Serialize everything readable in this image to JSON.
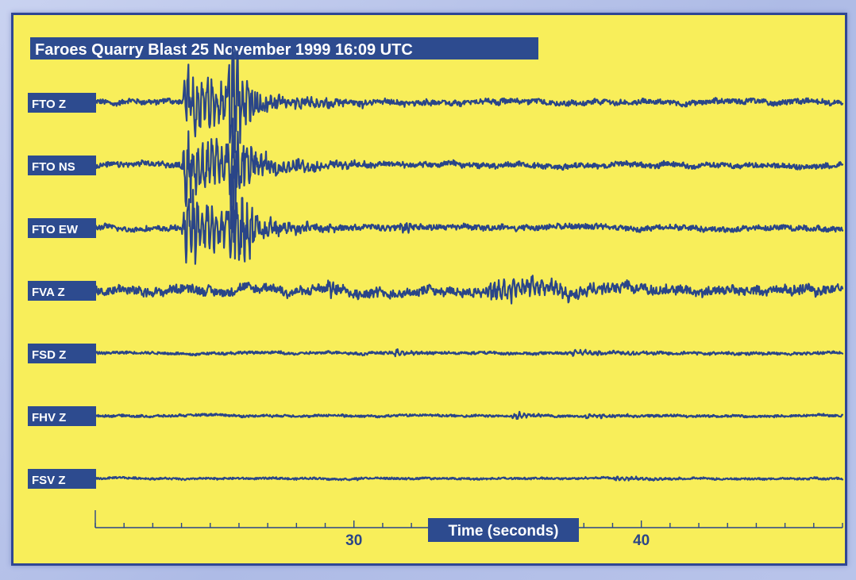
{
  "chart_data": {
    "type": "line",
    "title": "Faroes Quarry Blast  25 November 1999  16:09 UTC",
    "xlabel": "Time (seconds)",
    "ylabel": "",
    "xlim": [
      21,
      47
    ],
    "x_ticks": [
      30,
      40
    ],
    "minor_tick_step": 1,
    "grid": false,
    "legend": "none",
    "series": [
      {
        "name": "FTO Z",
        "onset": 24.0,
        "amp": 1.0,
        "noise": 0.05,
        "events": [
          {
            "t": 24.0,
            "dur": 3.8,
            "a": 0.8
          },
          {
            "t": 25.6,
            "dur": 1.2,
            "a": 1.9
          },
          {
            "t": 30.0,
            "dur": 0.5,
            "a": 0.15
          }
        ]
      },
      {
        "name": "FTO NS",
        "onset": 24.0,
        "amp": 1.0,
        "noise": 0.05,
        "events": [
          {
            "t": 24.0,
            "dur": 3.8,
            "a": 0.8
          },
          {
            "t": 25.6,
            "dur": 1.2,
            "a": 1.7
          }
        ]
      },
      {
        "name": "FTO EW",
        "onset": 24.0,
        "amp": 1.0,
        "noise": 0.05,
        "events": [
          {
            "t": 24.0,
            "dur": 3.8,
            "a": 0.8
          },
          {
            "t": 25.6,
            "dur": 1.2,
            "a": 1.9
          },
          {
            "t": 31.6,
            "dur": 0.5,
            "a": 0.25
          }
        ]
      },
      {
        "name": "FVA Z",
        "onset": 29.0,
        "amp": 0.6,
        "noise": 0.14,
        "events": [
          {
            "t": 29.0,
            "dur": 0.9,
            "a": 0.35
          },
          {
            "t": 34.6,
            "dur": 4.5,
            "a": 0.55
          }
        ]
      },
      {
        "name": "FSD Z",
        "onset": 31.3,
        "amp": 0.35,
        "noise": 0.07,
        "events": [
          {
            "t": 31.3,
            "dur": 1.0,
            "a": 0.25
          },
          {
            "t": 37.5,
            "dur": 3.0,
            "a": 0.22
          }
        ]
      },
      {
        "name": "FHV Z",
        "onset": 29.5,
        "amp": 0.35,
        "noise": 0.06,
        "events": [
          {
            "t": 29.5,
            "dur": 0.4,
            "a": 0.2
          },
          {
            "t": 35.5,
            "dur": 1.0,
            "a": 0.3
          },
          {
            "t": 38.0,
            "dur": 1.5,
            "a": 0.2
          }
        ]
      },
      {
        "name": "FSV Z",
        "onset": 29.8,
        "amp": 0.3,
        "noise": 0.06,
        "events": [
          {
            "t": 29.8,
            "dur": 0.4,
            "a": 0.12
          },
          {
            "t": 39.0,
            "dur": 3.0,
            "a": 0.14
          }
        ]
      }
    ],
    "colors": {
      "background": "#f8ee5a",
      "trace": "#2a4588",
      "label_bg": "#2d4b8f",
      "label_text": "#ffffff"
    }
  }
}
